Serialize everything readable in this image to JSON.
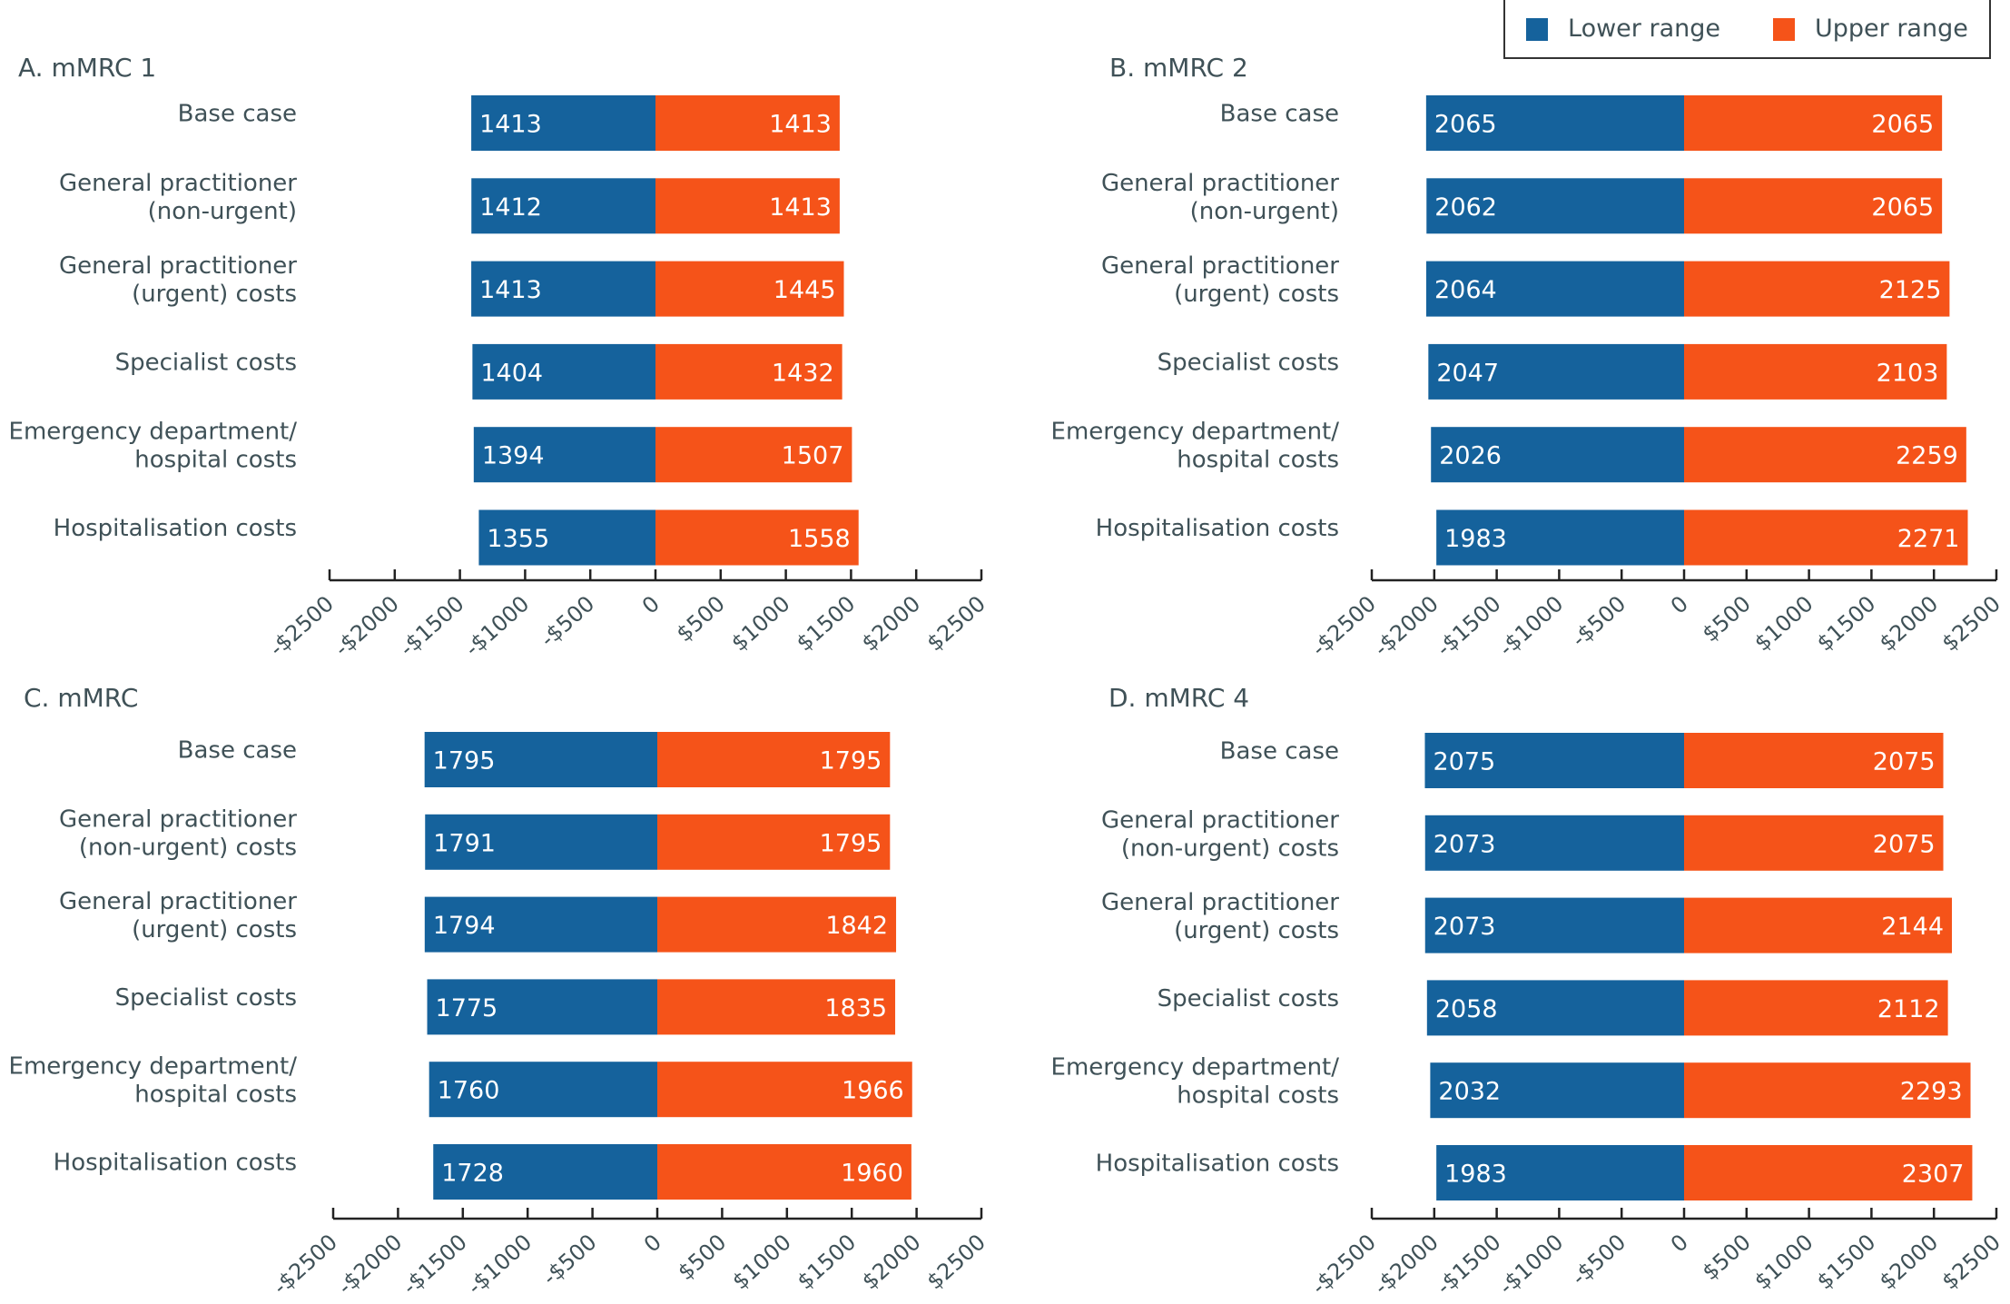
{
  "legend": {
    "items": [
      {
        "label": "Lower range",
        "color": "#15629c"
      },
      {
        "label": "Upper range",
        "color": "#f55319"
      }
    ],
    "placement": "top-right"
  },
  "colors": {
    "lower": "#15629c",
    "upper": "#f55319",
    "text": "#3f5157",
    "axis": "#222222"
  },
  "chart_data": [
    {
      "type": "bar",
      "orientation": "horizontal-diverging",
      "title": "A. mMRC 1",
      "categories": [
        [
          "Base case"
        ],
        [
          "General practitioner",
          "(non-urgent)"
        ],
        [
          "General practitioner",
          "(urgent) costs"
        ],
        [
          "Specialist costs"
        ],
        [
          "Emergency department/",
          "hospital costs"
        ],
        [
          "Hospitalisation costs"
        ]
      ],
      "series": [
        {
          "name": "Lower range",
          "values": [
            1413,
            1412,
            1413,
            1404,
            1394,
            1355
          ]
        },
        {
          "name": "Upper range",
          "values": [
            1413,
            1413,
            1445,
            1432,
            1507,
            1558
          ]
        }
      ],
      "xlim": [
        -2500,
        2500
      ],
      "xticks": [
        -2500,
        -2000,
        -1500,
        -1000,
        -500,
        0,
        500,
        1000,
        1500,
        2000,
        2500
      ],
      "xtick_labels": [
        "-$2500",
        "-$2000",
        "-$1500",
        "-$1000",
        "-$500",
        "0",
        "$500",
        "$1000",
        "$1500",
        "$2000",
        "$2500"
      ],
      "xlabel": "",
      "ylabel": "",
      "grid": false
    },
    {
      "type": "bar",
      "orientation": "horizontal-diverging",
      "title": "B. mMRC 2",
      "categories": [
        [
          "Base case"
        ],
        [
          "General practitioner",
          "(non-urgent)"
        ],
        [
          "General practitioner",
          "(urgent) costs"
        ],
        [
          "Specialist costs"
        ],
        [
          "Emergency department/",
          "hospital costs"
        ],
        [
          "Hospitalisation costs"
        ]
      ],
      "series": [
        {
          "name": "Lower range",
          "values": [
            2065,
            2062,
            2064,
            2047,
            2026,
            1983
          ]
        },
        {
          "name": "Upper range",
          "values": [
            2065,
            2065,
            2125,
            2103,
            2259,
            2271
          ]
        }
      ],
      "xlim": [
        -2500,
        2500
      ],
      "xticks": [
        -2500,
        -2000,
        -1500,
        -1000,
        -500,
        0,
        500,
        1000,
        1500,
        2000,
        2500
      ],
      "xtick_labels": [
        "-$2500",
        "-$2000",
        "-$1500",
        "-$1000",
        "-$500",
        "0",
        "$500",
        "$1000",
        "$1500",
        "$2000",
        "$2500"
      ],
      "xlabel": "",
      "ylabel": "",
      "grid": false
    },
    {
      "type": "bar",
      "orientation": "horizontal-diverging",
      "title": "C. mMRC",
      "categories": [
        [
          "Base case"
        ],
        [
          "General practitioner",
          "(non-urgent) costs"
        ],
        [
          "General practitioner",
          "(urgent) costs"
        ],
        [
          "Specialist costs"
        ],
        [
          "Emergency department/",
          "hospital costs"
        ],
        [
          "Hospitalisation costs"
        ]
      ],
      "series": [
        {
          "name": "Lower range",
          "values": [
            1795,
            1791,
            1794,
            1775,
            1760,
            1728
          ]
        },
        {
          "name": "Upper range",
          "values": [
            1795,
            1795,
            1842,
            1835,
            1966,
            1960
          ]
        }
      ],
      "xlim": [
        -2500,
        2500
      ],
      "xticks": [
        -2500,
        -2000,
        -1500,
        -1000,
        -500,
        0,
        500,
        1000,
        1500,
        2000,
        2500
      ],
      "xtick_labels": [
        "-$2500",
        "-$2000",
        "-$1500",
        "-$1000",
        "-$500",
        "0",
        "$500",
        "$1000",
        "$1500",
        "$2000",
        "$2500"
      ],
      "xlabel": "",
      "ylabel": "",
      "grid": false
    },
    {
      "type": "bar",
      "orientation": "horizontal-diverging",
      "title": "D. mMRC 4",
      "categories": [
        [
          "Base case"
        ],
        [
          "General practitioner",
          "(non-urgent) costs"
        ],
        [
          "General practitioner",
          "(urgent) costs"
        ],
        [
          "Specialist costs"
        ],
        [
          "Emergency department/",
          "hospital costs"
        ],
        [
          "Hospitalisation costs"
        ]
      ],
      "series": [
        {
          "name": "Lower range",
          "values": [
            2075,
            2073,
            2073,
            2058,
            2032,
            1983
          ]
        },
        {
          "name": "Upper range",
          "values": [
            2075,
            2075,
            2144,
            2112,
            2293,
            2307
          ]
        }
      ],
      "xlim": [
        -2500,
        2500
      ],
      "xticks": [
        -2500,
        -2000,
        -1500,
        -1000,
        -500,
        0,
        500,
        1000,
        1500,
        2000,
        2500
      ],
      "xtick_labels": [
        "-$2500",
        "-$2000",
        "-$1500",
        "-$1000",
        "-$500",
        "0",
        "$500",
        "$1000",
        "$1500",
        "$2000",
        "$2500"
      ],
      "xlabel": "",
      "ylabel": "",
      "grid": false
    }
  ]
}
